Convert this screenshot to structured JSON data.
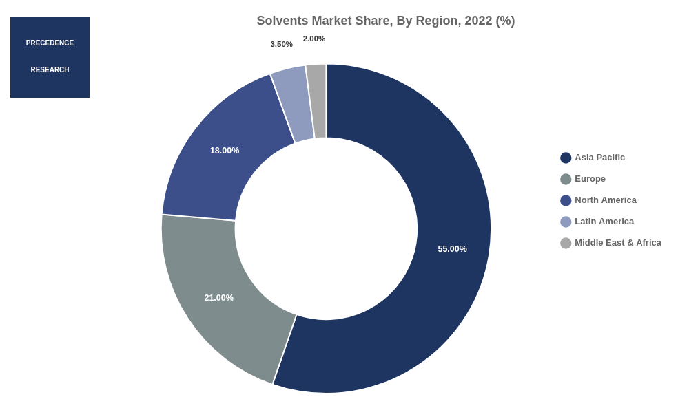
{
  "chart_data": {
    "type": "doughnut",
    "title": "Solvents Market Share, By Region, 2022 (%)",
    "categories": [
      "Asia Pacific",
      "Europe",
      "North America",
      "Latin America",
      "Middle East & Africa"
    ],
    "values": [
      55.0,
      21.0,
      18.0,
      3.5,
      2.0
    ],
    "value_labels": [
      "55.00%",
      "21.00%",
      "18.00%",
      "3.50%",
      "2.00%"
    ],
    "colors": [
      "#1e3461",
      "#7f8c8d",
      "#3d4f8a",
      "#8e9bbf",
      "#a8a8a8"
    ],
    "data_labels": true,
    "legend": "right",
    "annotations": [
      "PRECEDENCE",
      "RESEARCH"
    ]
  }
}
